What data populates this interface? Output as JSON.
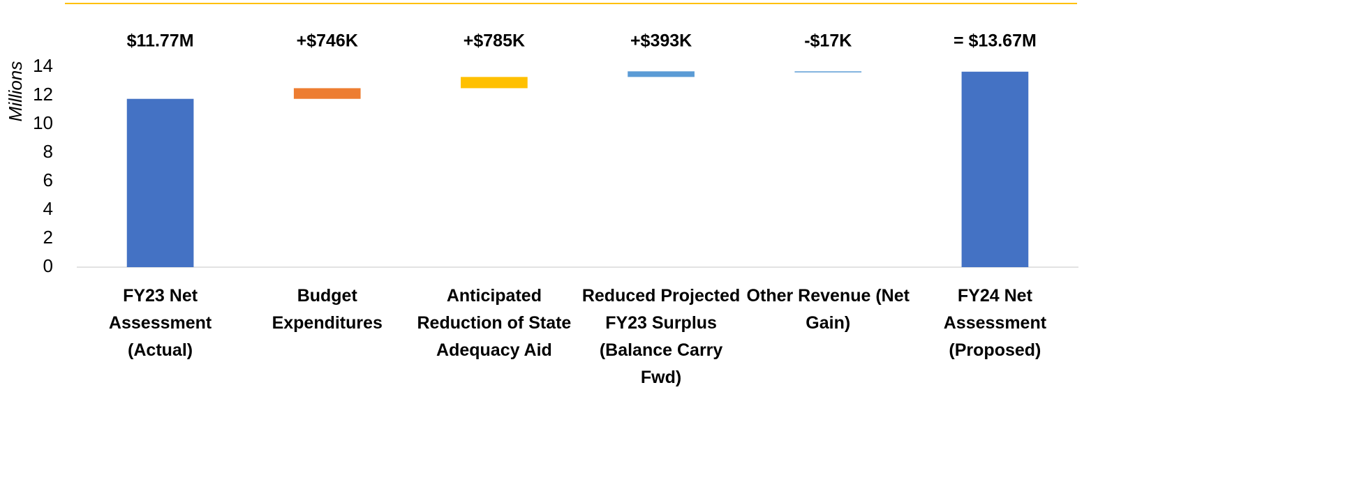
{
  "chart_data": {
    "type": "waterfall",
    "y_label": "Millions",
    "categories": [
      "FY23 Net Assessment (Actual)",
      "Budget Expenditures",
      "Anticipated Reduction of State Adequacy Aid",
      "Reduced Projected FY23 Surplus (Balance Carry Fwd)",
      "Other Revenue (Net Gain)",
      "FY24 Net Assessment (Proposed)"
    ],
    "values": [
      11.77,
      0.746,
      0.785,
      0.393,
      -0.017,
      13.67
    ],
    "value_labels": [
      "$11.77M",
      "+$746K",
      "+$785K",
      "+$393K",
      "-$17K",
      "= $13.67M"
    ],
    "measures": [
      "absolute",
      "relative",
      "relative",
      "relative",
      "relative",
      "total"
    ],
    "colors": [
      "#4472c4",
      "#ed7d31",
      "#ffc000",
      "#5b9bd5",
      "#5b9bd5",
      "#4472c4"
    ],
    "ylim": [
      0,
      14
    ],
    "yticks": [
      0,
      2,
      4,
      6,
      8,
      10,
      12,
      14
    ],
    "grid": false
  }
}
